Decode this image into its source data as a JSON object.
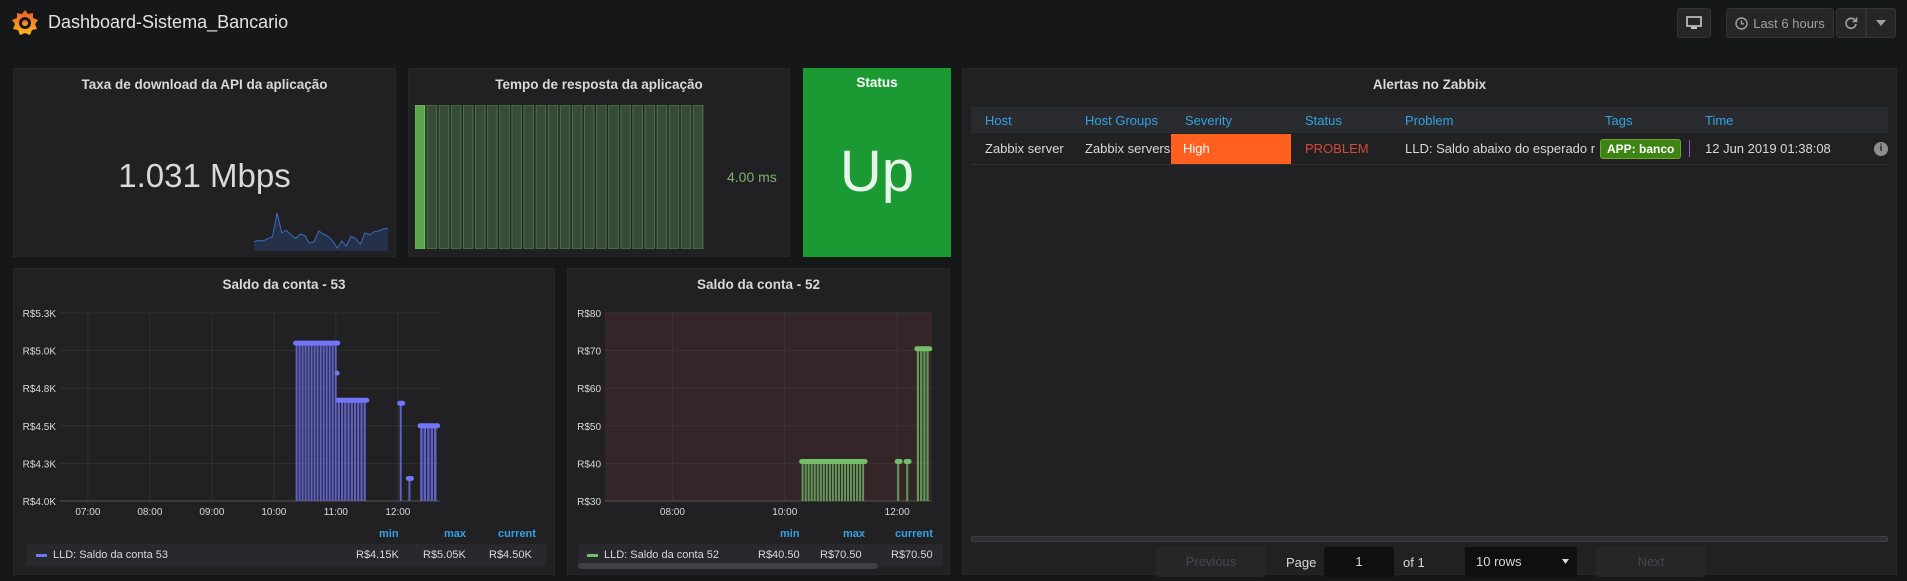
{
  "header": {
    "title": "Dashboard-Sistema_Bancario",
    "time_range": "Last 6 hours"
  },
  "panel_download": {
    "title": "Taxa de download da API da aplicação",
    "value": "1.031 Mbps",
    "sparkline": [
      0.22,
      0.25,
      0.24,
      0.3,
      0.35,
      0.98,
      0.45,
      0.52,
      0.4,
      0.3,
      0.42,
      0.38,
      0.18,
      0.22,
      0.5,
      0.42,
      0.36,
      0.24,
      0.05,
      0.24,
      0.1,
      0.36,
      0.3,
      0.15,
      0.45,
      0.4,
      0.48,
      0.5,
      0.55,
      0.58
    ]
  },
  "panel_response": {
    "title": "Tempo de resposta da aplicação",
    "value": "4.00 ms",
    "bar_count": 24
  },
  "panel_status": {
    "title": "Status",
    "value": "Up",
    "color": "#1b9a34"
  },
  "panel_alerts": {
    "title": "Alertas no Zabbix",
    "columns": [
      "Host",
      "Host Groups",
      "Severity",
      "Status",
      "Problem",
      "Tags",
      "Time"
    ],
    "rows": [
      {
        "host": "Zabbix server",
        "host_groups": "Zabbix servers",
        "severity": "High",
        "status": "PROBLEM",
        "problem": "LLD: Saldo abaixo do esperado r",
        "tag": "APP: banco",
        "time": "12 Jun 2019 01:38:08"
      }
    ],
    "pagination": {
      "previous": "Previous",
      "page_label": "Page",
      "page": "1",
      "of_label": "of 1",
      "rows_option": "10 rows",
      "next": "Next"
    },
    "severity_color": "#ff5f1f",
    "status_color": "#d44a3a"
  },
  "chart_data": [
    {
      "type": "bar",
      "title": "Saldo da conta - 53",
      "y_ticks": [
        "R$4.0K",
        "R$4.3K",
        "R$4.5K",
        "R$4.8K",
        "R$5.0K",
        "R$5.3K"
      ],
      "x_ticks": [
        "07:00",
        "08:00",
        "09:00",
        "10:00",
        "11:00",
        "12:00"
      ],
      "ylim": [
        4000,
        5250
      ],
      "xlim": [
        6.55,
        12.68
      ],
      "color": "#7375f9",
      "series": [
        {
          "name": "LLD: Saldo da conta 53",
          "points": [
            {
              "x0": 10.35,
              "x1": 11.03,
              "y": 5050
            },
            {
              "x0": 11.03,
              "x1": 11.5,
              "y": 4670
            },
            {
              "x0": 12.03,
              "x1": 12.06,
              "y": 4650
            },
            {
              "x0": 12.17,
              "x1": 12.2,
              "y": 4150
            },
            {
              "x0": 12.36,
              "x1": 12.64,
              "y": 4500
            }
          ],
          "marker": {
            "x": 11.02,
            "y": 4850
          }
        }
      ],
      "legend": {
        "headers": [
          "min",
          "max",
          "current"
        ],
        "name": "LLD: Saldo da conta 53",
        "min": "R$4.15K",
        "max": "R$5.05K",
        "current": "R$4.50K"
      }
    },
    {
      "type": "bar",
      "title": "Saldo da conta - 52",
      "y_ticks": [
        "R$30",
        "R$40",
        "R$50",
        "R$60",
        "R$70",
        "R$80"
      ],
      "x_ticks": [
        "08:00",
        "10:00",
        "12:00"
      ],
      "ylim": [
        30,
        80
      ],
      "xlim": [
        6.8,
        12.62
      ],
      "color": "#73bf69",
      "series": [
        {
          "name": "LLD: Saldo da conta 52",
          "points": [
            {
              "x0": 10.3,
              "x1": 11.43,
              "y": 40.5
            },
            {
              "x0": 12.0,
              "x1": 12.04,
              "y": 40.5
            },
            {
              "x0": 12.16,
              "x1": 12.2,
              "y": 40.5
            },
            {
              "x0": 12.35,
              "x1": 12.58,
              "y": 70.5
            }
          ]
        }
      ],
      "legend": {
        "headers": [
          "min",
          "max",
          "current"
        ],
        "name": "LLD: Saldo da conta 52",
        "min": "R$40.50",
        "max": "R$70.50",
        "current": "R$70.50"
      }
    }
  ]
}
